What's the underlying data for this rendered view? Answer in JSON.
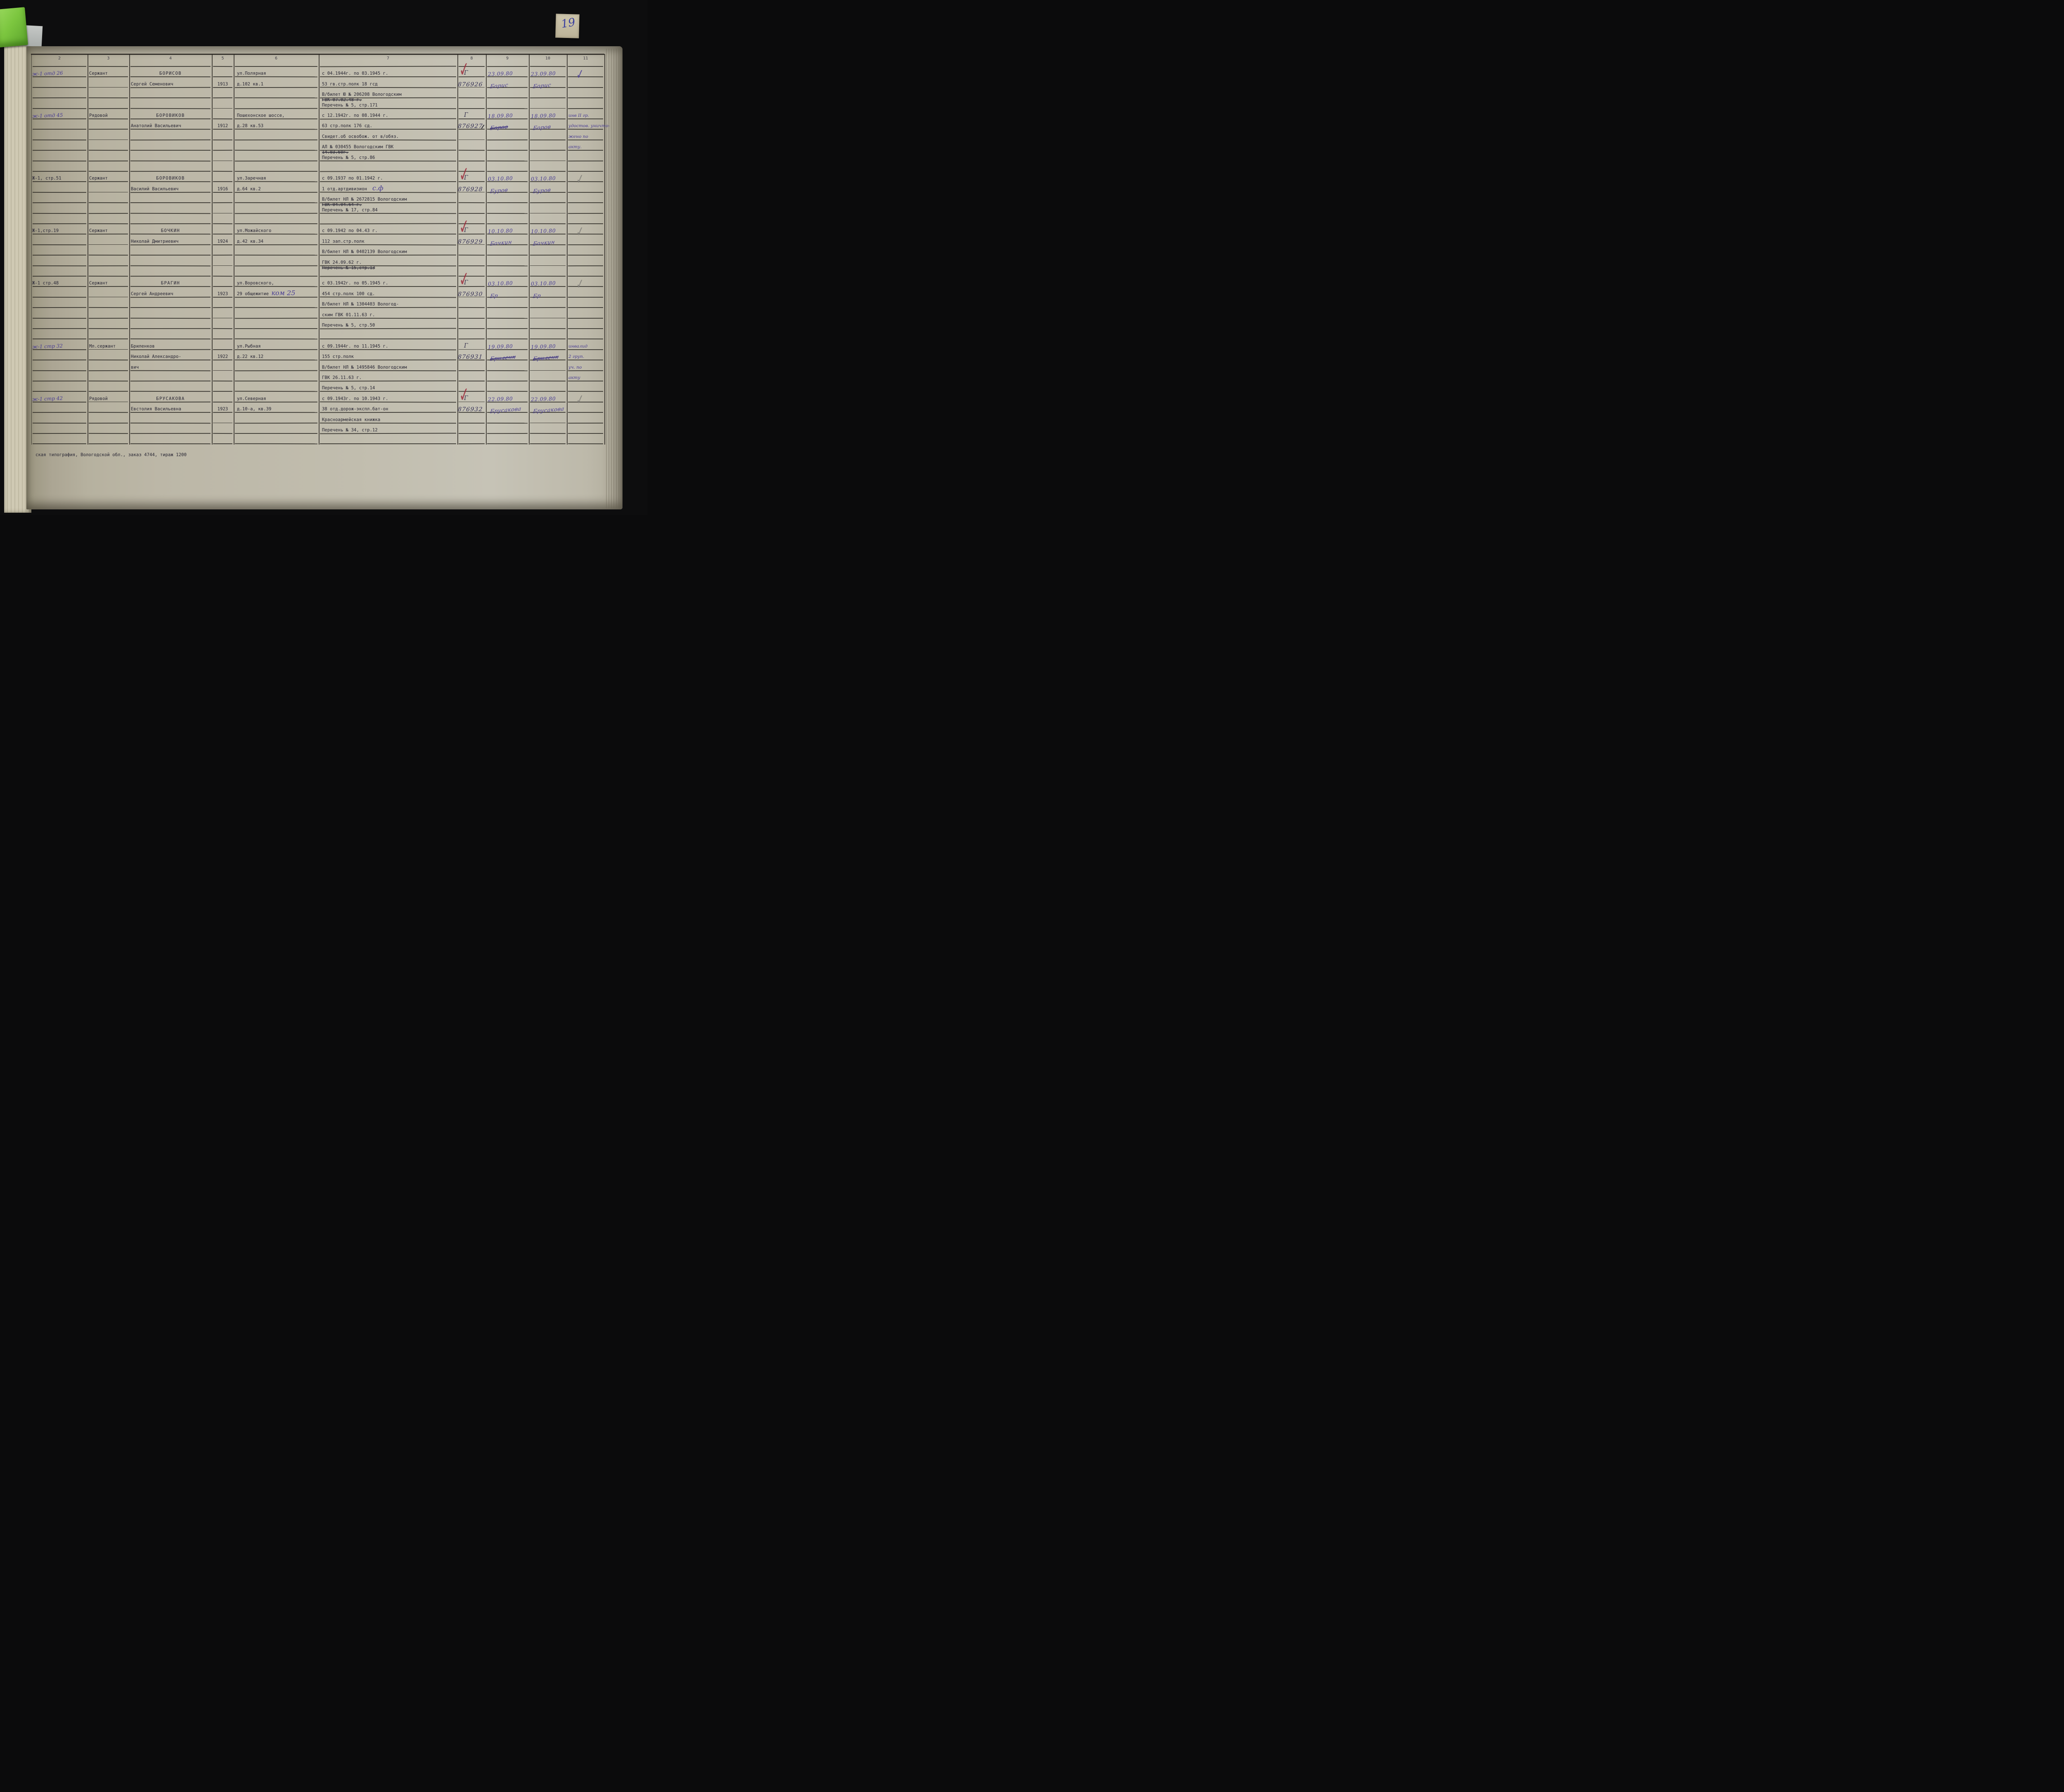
{
  "glyphs": {
    "check": "✓"
  },
  "page": {
    "tab_number": "19",
    "footer": "ская типография, Вологодской обл., заказ 4744, тираж 1200"
  },
  "table": {
    "column_numbers": [
      "2",
      "3",
      "4",
      "5",
      "6",
      "7",
      "8",
      "9",
      "10",
      "11"
    ],
    "records": [
      {
        "mark": {
          "text": "ж-1 отд 26",
          "hand": true
        },
        "rank": "Сержант",
        "name_lines": [
          "БОРИСОВ",
          "Сергей Семенович"
        ],
        "birth_year": "1913",
        "address_lines": [
          {
            "parts": [
              {
                "t": "ул.Полярная"
              }
            ]
          },
          {
            "parts": [
              {
                "t": "д.102 кв.1"
              }
            ]
          }
        ],
        "service_lines": [
          {
            "parts": [
              {
                "t": "с 04.1944г. по 03.1945 г."
              }
            ]
          },
          {
            "parts": [
              {
                "t": "53 гв.стр.полк 18 гсд"
              }
            ]
          },
          {
            "parts": [
              {
                "t": "В/билет Ю № 206208 Вологодским"
              }
            ]
          },
          {
            "cont": true,
            "parts": [
              {
                "t": "ГВК 07.02.48 г.",
                "strike": true
              }
            ]
          },
          {
            "parts": [
              {
                "t": "Перечень № 5, стр.171"
              }
            ]
          }
        ],
        "col8": {
          "series": "Г",
          "number": "876926",
          "red_check": true
        },
        "col9": {
          "date": "23.09.80",
          "signature": "Борис"
        },
        "col10": {
          "date": "23.09.80",
          "signature": "Борис"
        },
        "col11": {
          "check": "purple"
        }
      },
      {
        "mark": {
          "text": "ж-1 отд 45",
          "hand": true
        },
        "rank": "Рядовой",
        "name_lines": [
          "БОРОВИКОВ",
          "Анатолий Васильевич"
        ],
        "birth_year": "1912",
        "address_lines": [
          {
            "parts": [
              {
                "t": "Пошехонское шоссе,"
              }
            ]
          },
          {
            "parts": [
              {
                "t": "д.28 кв.53"
              }
            ]
          }
        ],
        "service_lines": [
          {
            "parts": [
              {
                "t": "с 12.1942г. по 08.1944 г."
              }
            ]
          },
          {
            "parts": [
              {
                "t": "63 стр.полк 176 сд."
              }
            ]
          },
          {
            "parts": [
              {
                "t": "Свидет.об освобож. от в/обяз."
              }
            ]
          },
          {
            "parts": [
              {
                "t": "АЛ № 030455 Вологодским ГВК"
              }
            ]
          },
          {
            "cont": true,
            "parts": [
              {
                "t": "14.03.60г.",
                "strike": true
              }
            ]
          },
          {
            "parts": [
              {
                "t": "Перечень № 5, стр.86"
              }
            ]
          }
        ],
        "col8": {
          "series": "Г",
          "number": "876927",
          "red_check": false,
          "number_strike_last": true
        },
        "col9": {
          "date": "18.09.80",
          "signature": "Боров",
          "strike": true
        },
        "col10": {
          "date": "18.09.80",
          "signature": "Боров"
        },
        "col11": {
          "note_lines": [
            "инв II гр.",
            "удостов. уничто-",
            "жено по",
            "акту."
          ]
        }
      },
      {
        "mark": {
          "text": "Ж-1, стр.51",
          "hand": false
        },
        "rank": "Сержант",
        "name_lines": [
          "БОРОВИКОВ",
          "Василий Васильевич"
        ],
        "birth_year": "1916",
        "address_lines": [
          {
            "parts": [
              {
                "t": "ул.Заречная"
              }
            ]
          },
          {
            "parts": [
              {
                "t": "д.64 кв.2"
              }
            ]
          }
        ],
        "service_lines": [
          {
            "parts": [
              {
                "t": "с 09.1937 по 01.1942 г."
              }
            ]
          },
          {
            "parts": [
              {
                "t": "1 отд.артдивизион  "
              },
              {
                "t": "с.ф",
                "hand": true
              }
            ]
          },
          {
            "parts": [
              {
                "t": "В/билет НЛ № 2672815 Вологодским"
              }
            ]
          },
          {
            "cont": true,
            "parts": [
              {
                "t": "ГВК 04.04.64 г.",
                "strike": true
              }
            ]
          },
          {
            "parts": [
              {
                "t": "Перечень № 17, стр.84"
              }
            ]
          }
        ],
        "col8": {
          "series": "Г",
          "number": "876928",
          "red_check": true
        },
        "col9": {
          "date": "03.10.80",
          "signature": "Буров"
        },
        "col10": {
          "date": "03.10.80",
          "signature": "Буров"
        },
        "col11": {
          "check": "pencil"
        }
      },
      {
        "mark": {
          "text": "Ж-1,стр.19",
          "hand": false
        },
        "rank": "Сержант",
        "name_lines": [
          "БОЧКИН",
          "Николай Дмитриевич"
        ],
        "birth_year": "1924",
        "address_lines": [
          {
            "parts": [
              {
                "t": "ул.Можайского"
              }
            ]
          },
          {
            "parts": [
              {
                "t": "д.42 кв.34"
              }
            ]
          }
        ],
        "service_lines": [
          {
            "parts": [
              {
                "t": "с 09.1942 по 04.43 г."
              }
            ]
          },
          {
            "parts": [
              {
                "t": "112 зап.стр.полк"
              }
            ]
          },
          {
            "parts": [
              {
                "t": "В/билет НЛ № 0402139 Вологодским"
              }
            ]
          },
          {
            "parts": [
              {
                "t": "ГВК 24.09.62 г."
              }
            ]
          },
          {
            "cont": true,
            "parts": [
              {
                "t": "Перечень № 15,стр.13",
                "strike": true
              }
            ]
          }
        ],
        "col8": {
          "series": "Г",
          "number": "876929",
          "red_check": true
        },
        "col9": {
          "date": "10.10.80",
          "signature": "Бочкин"
        },
        "col10": {
          "date": "10.10.80",
          "signature": "Бочкин"
        },
        "col11": {
          "check": "pencil"
        }
      },
      {
        "mark": {
          "text": "Ж-1 стр.48",
          "hand": false
        },
        "rank": "Сержант",
        "name_lines": [
          "БРАГИН",
          "Сергей Андреевич"
        ],
        "birth_year": "1923",
        "address_lines": [
          {
            "parts": [
              {
                "t": "ул.Воровского,"
              }
            ]
          },
          {
            "parts": [
              {
                "t": "29 общежитие "
              },
              {
                "t": "ком 25",
                "hand": true
              }
            ]
          }
        ],
        "service_lines": [
          {
            "parts": [
              {
                "t": "с 03.1942г. по 05.1945 г."
              }
            ]
          },
          {
            "parts": [
              {
                "t": "454 стр.полк 100 сд."
              }
            ]
          },
          {
            "parts": [
              {
                "t": "В/билет НЛ № 1304403 Вологод-"
              }
            ]
          },
          {
            "parts": [
              {
                "t": "ским ГВК 01.11.63 г."
              }
            ]
          },
          {
            "parts": [
              {
                "t": "Перечень № 5, стр.50"
              }
            ]
          }
        ],
        "col8": {
          "series": "Г",
          "number": "876930",
          "red_check": true
        },
        "col9": {
          "date": "03.10.80",
          "signature": "Бр"
        },
        "col10": {
          "date": "03.10.80",
          "signature": "Бр"
        },
        "col11": {
          "check": "pencil"
        }
      },
      {
        "mark": {
          "text": "ж-1 стр 32",
          "hand": true
        },
        "rank": "Мл.сержант",
        "name_lines": [
          "Бриленков",
          "Николай Александро-",
          "вич"
        ],
        "birth_year": "1922",
        "address_lines": [
          {
            "parts": [
              {
                "t": "ул.Рыбная"
              }
            ]
          },
          {
            "parts": [
              {
                "t": "д.22 кв.12"
              }
            ]
          }
        ],
        "service_lines": [
          {
            "parts": [
              {
                "t": "с 09.1944г. по 11.1945 г."
              }
            ]
          },
          {
            "parts": [
              {
                "t": "155 стр.полк"
              }
            ]
          },
          {
            "parts": [
              {
                "t": "В/билет НЛ № 1495846 Вологодским"
              }
            ]
          },
          {
            "parts": [
              {
                "t": "ГВК 26.11.63 г."
              }
            ]
          },
          {
            "parts": [
              {
                "t": "Перечень № 5, стр.14"
              }
            ]
          }
        ],
        "col8": {
          "series": "Г",
          "number": "876931",
          "red_check": false
        },
        "col9": {
          "date": "19.09.80",
          "signature": "Бриленк",
          "strike": true
        },
        "col10": {
          "date": "19.09.80",
          "signature": "Бриленк",
          "strike": true
        },
        "col11": {
          "note_lines": [
            "инвалид",
            "2 груп.",
            "уч. по",
            "акту"
          ]
        }
      },
      {
        "mark": {
          "text": "ж-1 стр 42",
          "hand": true
        },
        "rank": "Рядовой",
        "name_lines": [
          "БРУСАКОВА",
          "Евстолия Васильевна"
        ],
        "birth_year": "1923",
        "address_lines": [
          {
            "parts": [
              {
                "t": "ул.Северная"
              }
            ]
          },
          {
            "parts": [
              {
                "t": "д.10-а, кв.39"
              }
            ]
          }
        ],
        "service_lines": [
          {
            "parts": [
              {
                "t": "с 09.1943г. по 10.1943 г."
              }
            ]
          },
          {
            "parts": [
              {
                "t": "38 отд.дорож-экспл.бат-он"
              }
            ]
          },
          {
            "parts": [
              {
                "t": "Красноармейская книжка"
              }
            ]
          },
          {
            "parts": [
              {
                "t": "Перечень № 34, стр.12"
              }
            ]
          }
        ],
        "col8": {
          "series": "Г",
          "number": "876932",
          "red_check": true
        },
        "col9": {
          "date": "22.09.80",
          "signature": "Брусакова"
        },
        "col10": {
          "date": "22.09.80",
          "signature": "Брусакова"
        },
        "col11": {
          "check": "pencil"
        }
      }
    ]
  }
}
